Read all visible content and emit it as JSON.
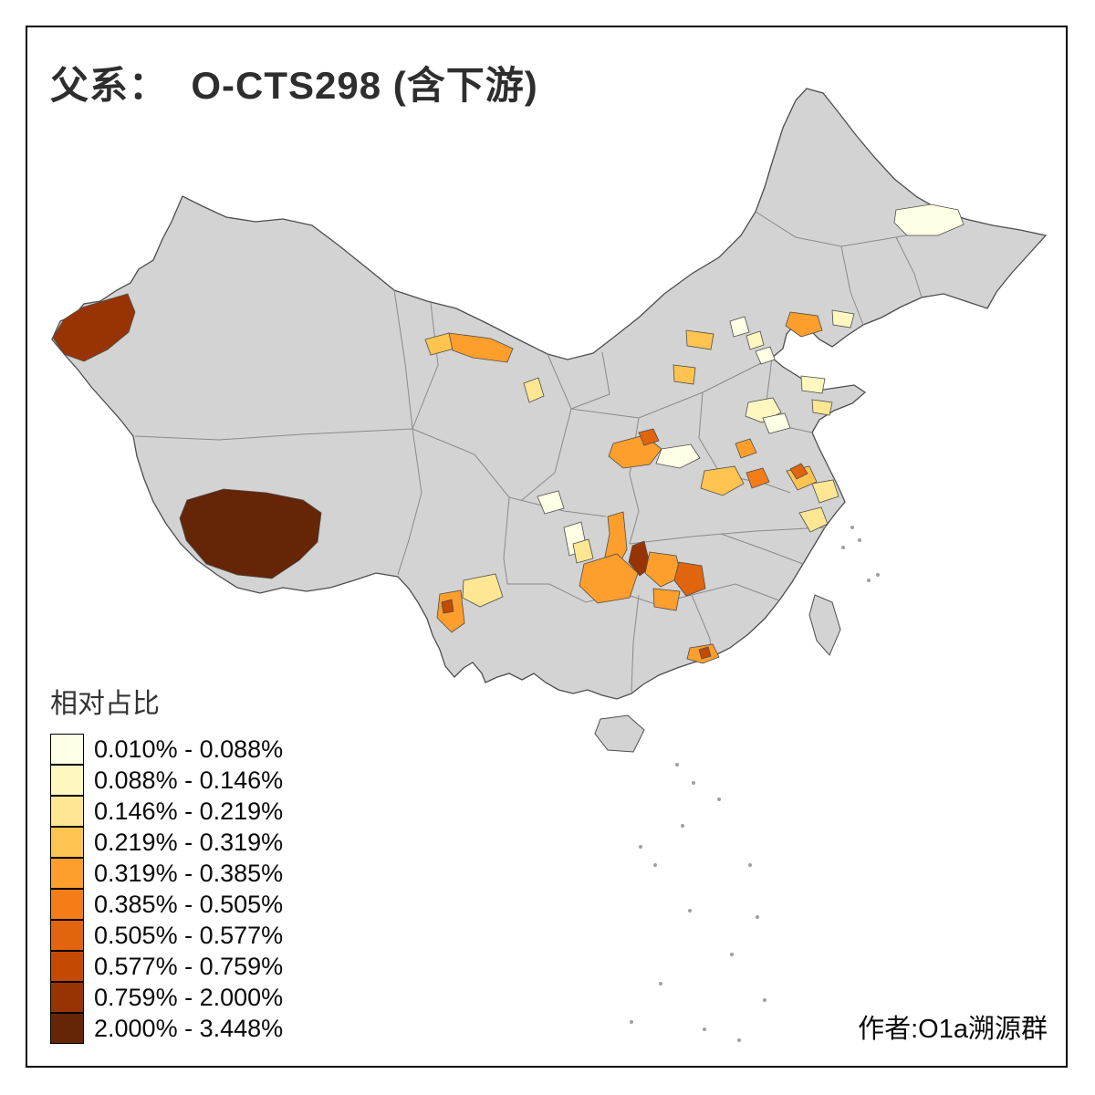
{
  "title": "父系：  O-CTS298 (含下游)",
  "legend": {
    "title": "相对占比",
    "bins": [
      {
        "label": "0.010% - 0.088%",
        "color": "#FFFFE5"
      },
      {
        "label": "0.088% - 0.146%",
        "color": "#FFF7C0"
      },
      {
        "label": "0.146% - 0.219%",
        "color": "#FEE692"
      },
      {
        "label": "0.219% - 0.319%",
        "color": "#FEC44F"
      },
      {
        "label": "0.319% - 0.385%",
        "color": "#FE9E2C"
      },
      {
        "label": "0.385% - 0.505%",
        "color": "#F57D17"
      },
      {
        "label": "0.505% - 0.577%",
        "color": "#E1640E"
      },
      {
        "label": "0.577% - 0.759%",
        "color": "#C44903"
      },
      {
        "label": "0.759% - 2.000%",
        "color": "#983404"
      },
      {
        "label": "2.000% - 3.448%",
        "color": "#662506"
      }
    ]
  },
  "credit": "作者:O1a溯源群",
  "map": {
    "no_data_color": "#D3D3D3",
    "boundary_color": "#4D4D4D",
    "background_color": "#FFFFFF"
  }
}
